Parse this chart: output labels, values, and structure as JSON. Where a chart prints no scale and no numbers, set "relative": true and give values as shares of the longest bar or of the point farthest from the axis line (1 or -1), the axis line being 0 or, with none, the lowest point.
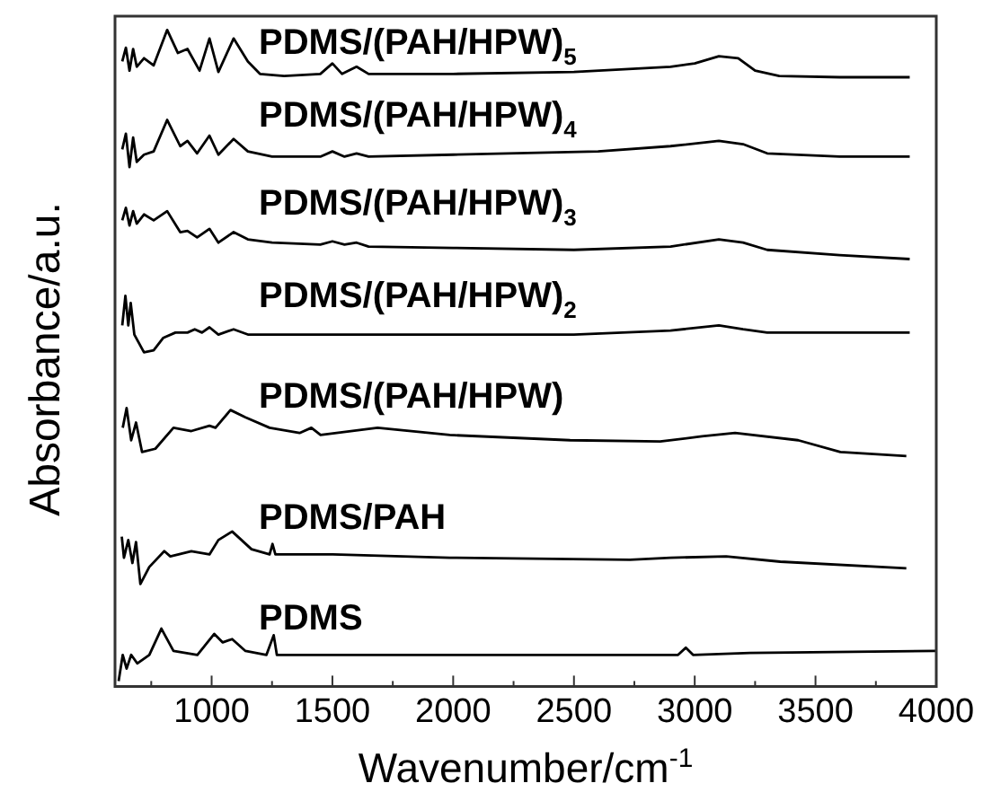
{
  "chart_data": {
    "type": "line",
    "xlabel": "Wavenumber/cm$^{-1}$",
    "ylabel": "Absorbance/a.u.",
    "relative": true,
    "legend": false,
    "grid": false,
    "tick_labels": "x",
    "marker": "none",
    "line_style": "solid",
    "xlim": [
      600,
      4000
    ],
    "xticks": [
      {
        "value": 750,
        "label": null
      },
      1000,
      {
        "value": 1250,
        "label": null
      },
      1500,
      {
        "value": 1750,
        "label": null
      },
      2000,
      {
        "value": 2250,
        "label": null
      },
      2500,
      {
        "value": 2750,
        "label": null
      },
      3000,
      {
        "value": 3250,
        "label": null
      },
      3500,
      {
        "value": 3750,
        "label": null
      },
      4000
    ],
    "series": [
      {
        "name": "PDMS/(PAH/HPW)$_{5}$",
        "color": "#000000",
        "x": [
          630,
          645,
          660,
          675,
          690,
          720,
          760,
          816,
          860,
          900,
          950,
          991,
          1028,
          1091,
          1150,
          1200,
          1300,
          1450,
          1500,
          1540,
          1600,
          1650,
          2000,
          2500,
          2900,
          3000,
          3100,
          3180,
          3250,
          3350,
          3600,
          3890
        ],
        "values": [
          0.952,
          0.973,
          0.938,
          0.971,
          0.944,
          0.957,
          0.946,
          1.0,
          0.965,
          0.971,
          0.938,
          0.987,
          0.936,
          0.987,
          0.952,
          0.933,
          0.93,
          0.933,
          0.949,
          0.933,
          0.944,
          0.933,
          0.933,
          0.936,
          0.944,
          0.949,
          0.96,
          0.957,
          0.938,
          0.93,
          0.928,
          0.928
        ]
      },
      {
        "name": "PDMS/(PAH/HPW)$_{4}$",
        "color": "#000000",
        "x": [
          630,
          645,
          660,
          675,
          690,
          720,
          760,
          816,
          870,
          900,
          940,
          991,
          1028,
          1091,
          1150,
          1250,
          1450,
          1500,
          1550,
          1600,
          1650,
          2000,
          2600,
          2900,
          3100,
          3200,
          3300,
          3600,
          3890
        ],
        "values": [
          0.818,
          0.842,
          0.791,
          0.836,
          0.799,
          0.81,
          0.815,
          0.863,
          0.823,
          0.831,
          0.812,
          0.839,
          0.81,
          0.834,
          0.815,
          0.807,
          0.807,
          0.815,
          0.807,
          0.812,
          0.807,
          0.81,
          0.815,
          0.823,
          0.831,
          0.826,
          0.812,
          0.807,
          0.807
        ]
      },
      {
        "name": "PDMS/(PAH/HPW)$_{3}$",
        "color": "#000000",
        "x": [
          630,
          645,
          660,
          675,
          690,
          720,
          760,
          816,
          870,
          900,
          940,
          991,
          1028,
          1091,
          1150,
          1250,
          1450,
          1500,
          1550,
          1600,
          1650,
          2000,
          2500,
          2900,
          3100,
          3200,
          3300,
          3600,
          3890
        ],
        "values": [
          0.71,
          0.729,
          0.702,
          0.724,
          0.705,
          0.719,
          0.71,
          0.724,
          0.692,
          0.694,
          0.684,
          0.697,
          0.676,
          0.692,
          0.681,
          0.676,
          0.673,
          0.678,
          0.673,
          0.676,
          0.67,
          0.668,
          0.665,
          0.67,
          0.681,
          0.676,
          0.665,
          0.657,
          0.651
        ]
      },
      {
        "name": "PDMS/(PAH/HPW)$_{2}$",
        "color": "#000000",
        "x": [
          630,
          643,
          655,
          665,
          680,
          720,
          760,
          800,
          850,
          900,
          930,
          960,
          991,
          1028,
          1091,
          1150,
          1500,
          2000,
          2500,
          2900,
          3100,
          3200,
          3300,
          3890
        ],
        "values": [
          0.55,
          0.595,
          0.55,
          0.584,
          0.536,
          0.509,
          0.512,
          0.531,
          0.539,
          0.539,
          0.544,
          0.539,
          0.547,
          0.536,
          0.544,
          0.536,
          0.536,
          0.536,
          0.536,
          0.542,
          0.55,
          0.544,
          0.539,
          0.539
        ]
      },
      {
        "name": "PDMS/(PAH/HPW)",
        "color": "#000000",
        "x": [
          632,
          648,
          667,
          687,
          712,
          767,
          842,
          916,
          991,
          1016,
          1078,
          1140,
          1240,
          1364,
          1413,
          1451,
          1687,
          1986,
          2484,
          2857,
          3030,
          3167,
          3428,
          3603,
          3876
        ],
        "values": [
          0.394,
          0.424,
          0.375,
          0.402,
          0.357,
          0.362,
          0.394,
          0.389,
          0.397,
          0.394,
          0.421,
          0.41,
          0.394,
          0.386,
          0.394,
          0.383,
          0.394,
          0.383,
          0.375,
          0.373,
          0.381,
          0.386,
          0.375,
          0.357,
          0.351
        ]
      },
      {
        "name": "PDMS/PAH",
        "color": "#000000",
        "x": [
          628,
          637,
          655,
          672,
          687,
          705,
          742,
          804,
          829,
          916,
          991,
          1028,
          1085,
          1165,
          1240,
          1252,
          1264,
          1501,
          1986,
          2732,
          2900,
          3130,
          3354,
          3876
        ],
        "values": [
          0.228,
          0.196,
          0.223,
          0.188,
          0.22,
          0.156,
          0.182,
          0.206,
          0.198,
          0.206,
          0.201,
          0.223,
          0.236,
          0.209,
          0.201,
          0.217,
          0.201,
          0.201,
          0.196,
          0.193,
          0.196,
          0.198,
          0.19,
          0.18
        ]
      },
      {
        "name": "PDMS",
        "color": "#000000",
        "x": [
          615,
          632,
          648,
          667,
          692,
          742,
          792,
          842,
          941,
          1011,
          1046,
          1085,
          1140,
          1227,
          1257,
          1270,
          1986,
          2931,
          2963,
          2993,
          3229,
          4000
        ],
        "values": [
          0.008,
          0.048,
          0.027,
          0.048,
          0.035,
          0.048,
          0.088,
          0.054,
          0.048,
          0.08,
          0.067,
          0.072,
          0.054,
          0.048,
          0.078,
          0.048,
          0.048,
          0.048,
          0.059,
          0.048,
          0.051,
          0.054
        ]
      }
    ]
  }
}
